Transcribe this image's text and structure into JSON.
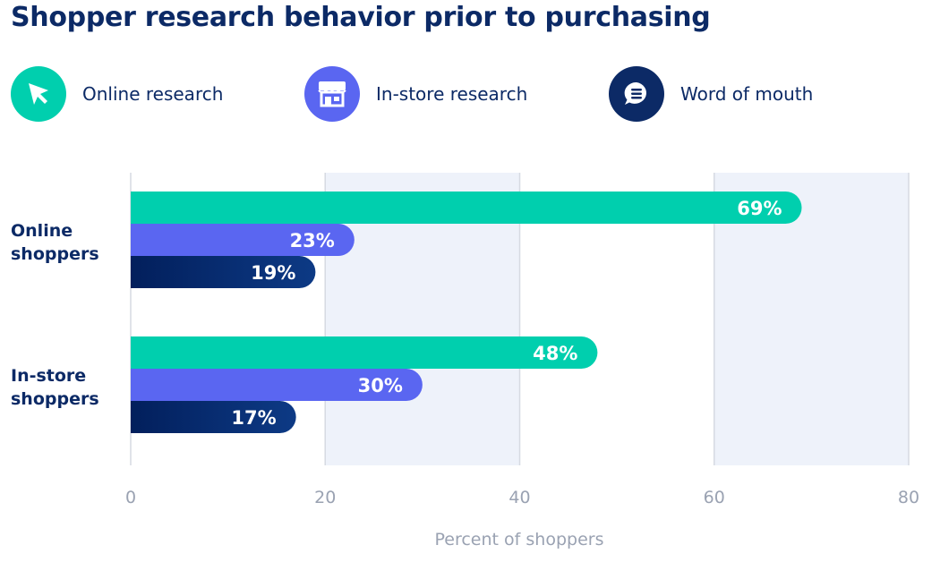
{
  "title": "Shopper research behavior prior to purchasing",
  "legend": [
    {
      "label": "Online research",
      "icon": "cursor-arrow-icon",
      "color": "#00cfae"
    },
    {
      "label": "In-store research",
      "icon": "storefront-icon",
      "color": "#5a66f1"
    },
    {
      "label": "Word of mouth",
      "icon": "chat-bubble-icon",
      "color": "#0c2a66"
    }
  ],
  "chart_data": {
    "type": "bar",
    "orientation": "horizontal",
    "title": "Shopper research behavior prior to purchasing",
    "categories": [
      {
        "line1": "Online",
        "line2": "shoppers"
      },
      {
        "line1": "In-store",
        "line2": "shoppers"
      }
    ],
    "series": [
      {
        "name": "Online research",
        "color": "#00cfae",
        "values": [
          69,
          48
        ],
        "labels": [
          "69%",
          "48%"
        ]
      },
      {
        "name": "In-store research",
        "color": "#5a66f1",
        "values": [
          23,
          30
        ],
        "labels": [
          "23%",
          "30%"
        ]
      },
      {
        "name": "Word of mouth",
        "color": "#0c2a66",
        "values": [
          19,
          17
        ],
        "labels": [
          "19%",
          "17%"
        ]
      }
    ],
    "xlim": [
      0,
      80
    ],
    "xticks": [
      "0",
      "20",
      "40",
      "60",
      "80"
    ],
    "xlabel": "Percent of shoppers",
    "ylabel": "",
    "grid": true
  }
}
